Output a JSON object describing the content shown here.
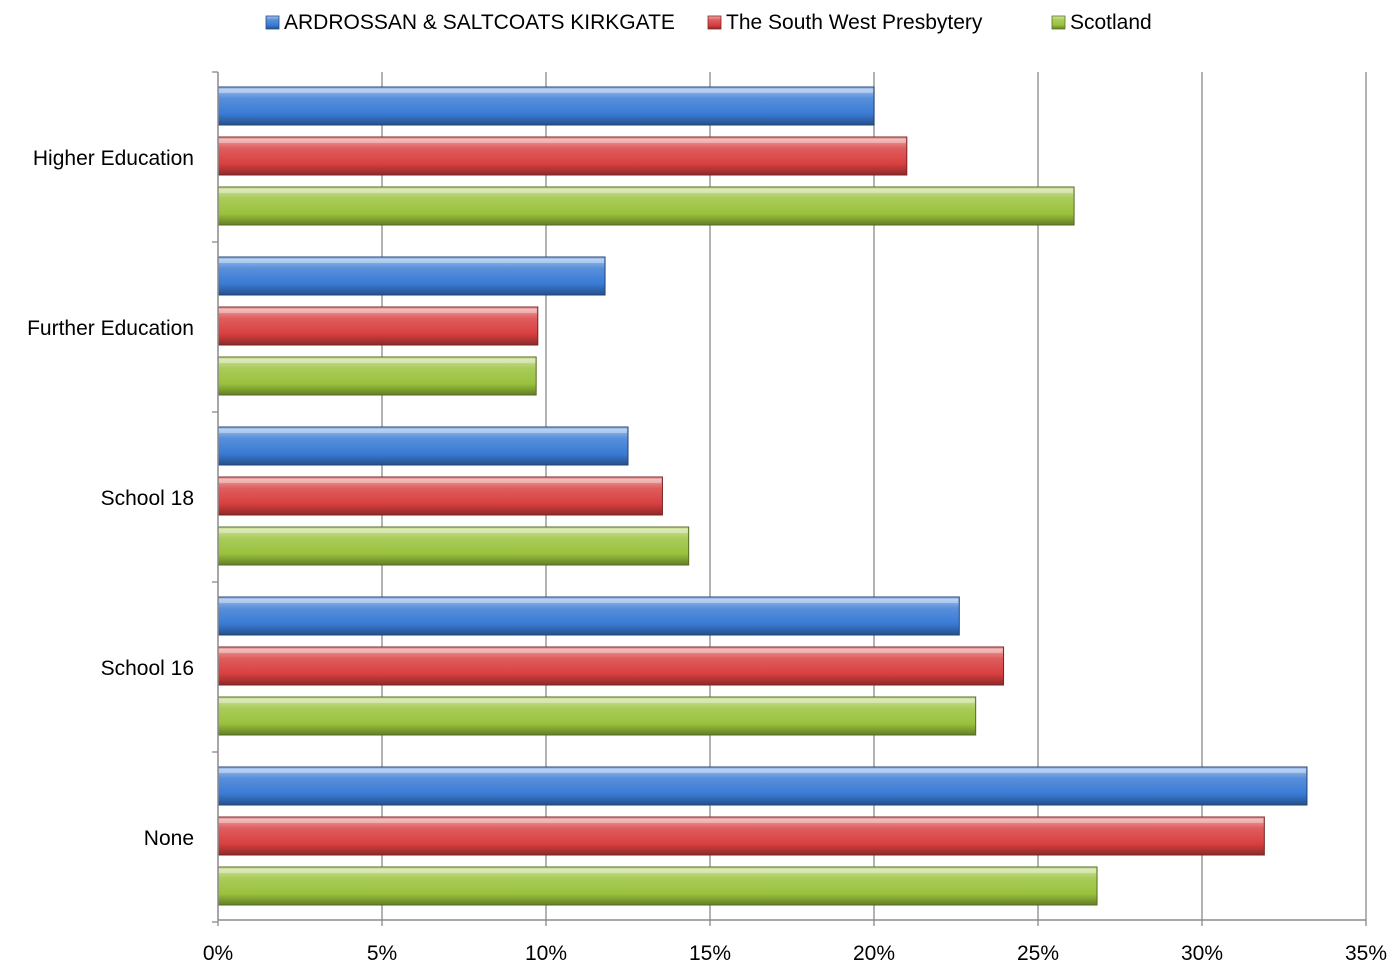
{
  "chart_data": {
    "type": "bar",
    "orientation": "horizontal",
    "title": "",
    "xlabel": "",
    "ylabel": "",
    "categories": [
      "Higher Education",
      "Further Education",
      "School 18",
      "School 16",
      "None"
    ],
    "series": [
      {
        "name": "ARDROSSAN & SALTCOATS KIRKGATE",
        "color": "#3a7bd5",
        "values": [
          20.0,
          11.8,
          12.5,
          22.6,
          33.2
        ]
      },
      {
        "name": "The South West Presbytery",
        "color": "#d94040",
        "values": [
          21.0,
          9.75,
          13.55,
          23.95,
          31.9
        ]
      },
      {
        "name": "Scotland",
        "color": "#9ac23c",
        "values": [
          26.1,
          9.7,
          14.35,
          23.1,
          26.8
        ]
      }
    ],
    "xlim": [
      0,
      35
    ],
    "xticks": [
      "0%",
      "5%",
      "10%",
      "15%",
      "20%",
      "25%",
      "30%",
      "35%"
    ],
    "grid": true,
    "legend_position": "top"
  }
}
